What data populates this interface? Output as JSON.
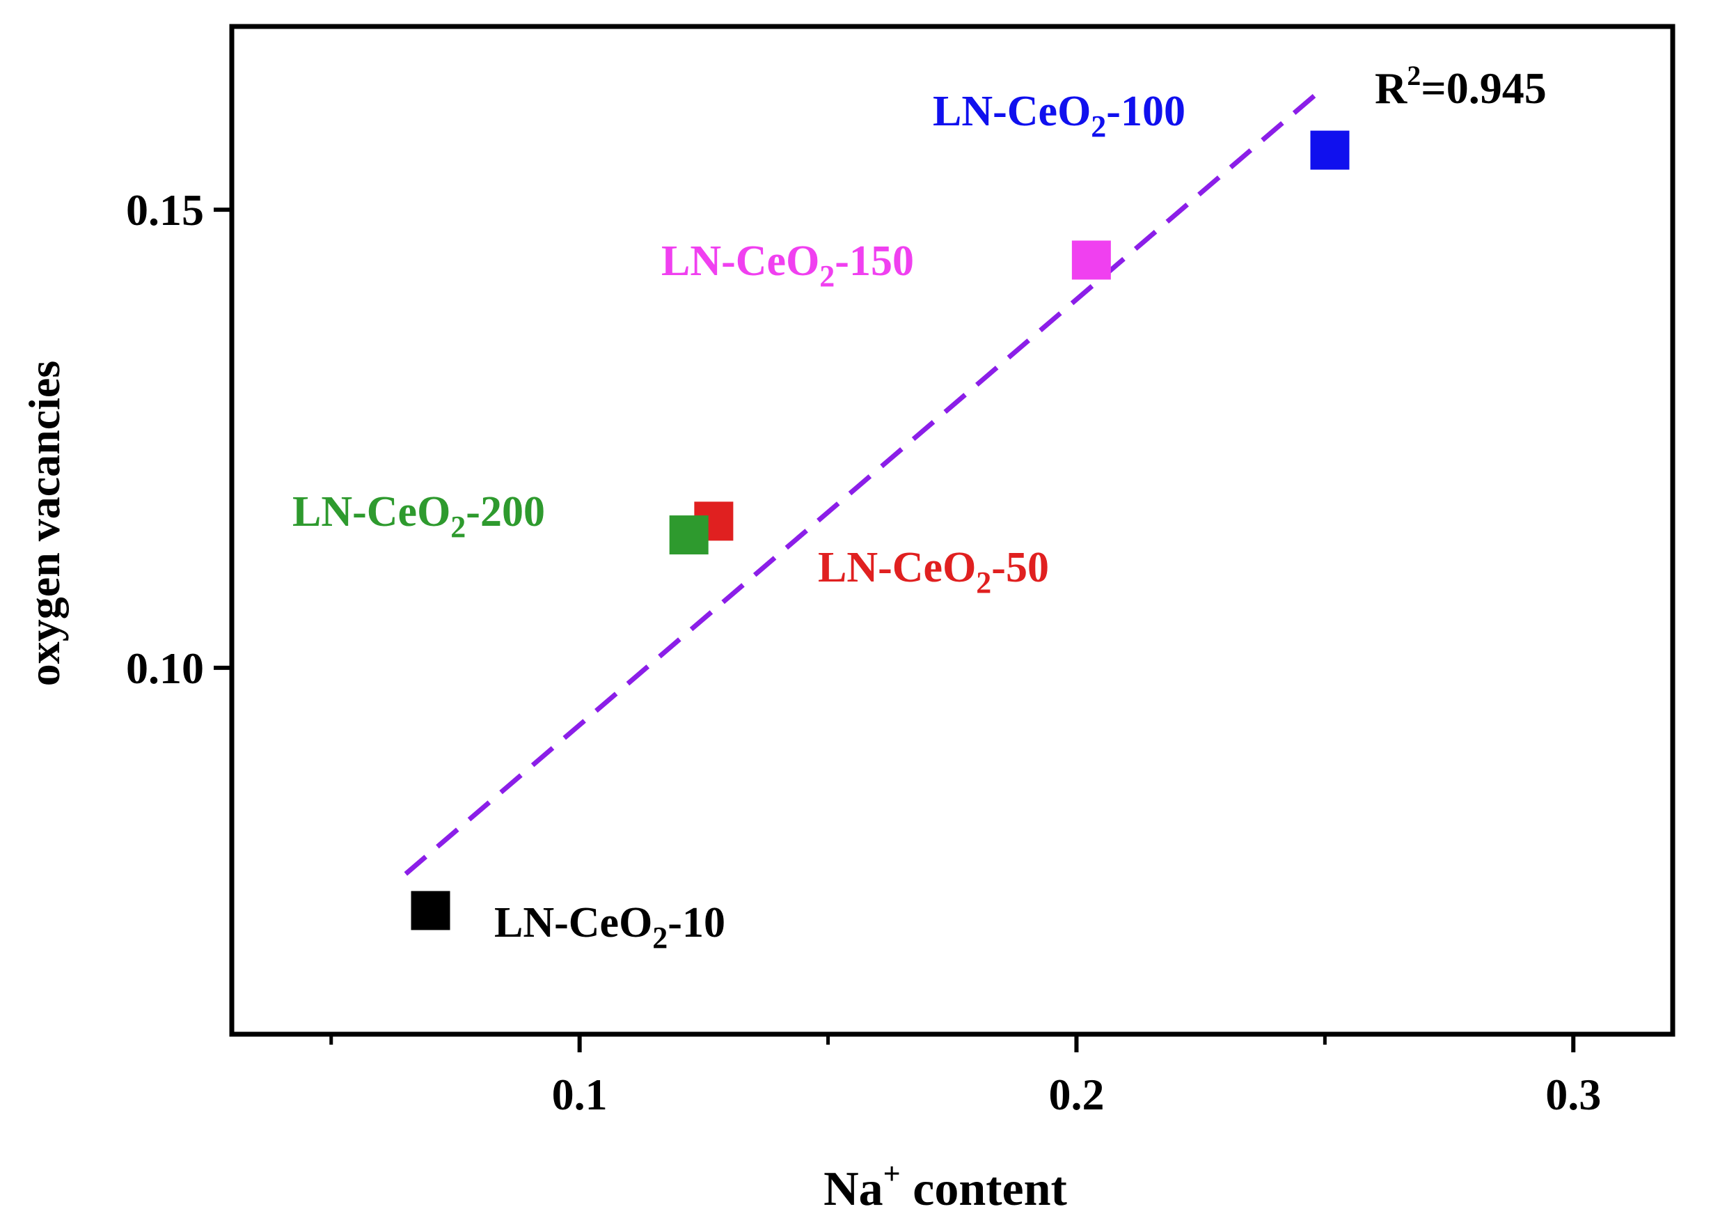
{
  "chart_data": {
    "type": "scatter",
    "xlabel": {
      "main": "Na",
      "sup": "+",
      "rest": " content"
    },
    "ylabel": "oxygen vacancies",
    "xlim": [
      0.03,
      0.32
    ],
    "ylim": [
      0.06,
      0.17
    ],
    "x_ticks_major": [
      0.1,
      0.2,
      0.3
    ],
    "x_tick_labels": [
      "0.1",
      "0.2",
      "0.3"
    ],
    "x_ticks_minor": [
      0.05,
      0.15,
      0.25
    ],
    "y_ticks_major": [
      0.1,
      0.15
    ],
    "y_tick_labels": [
      "0.10",
      "0.15"
    ],
    "points": [
      {
        "sample": "LN-CeO2-10",
        "label": {
          "pre": "LN-CeO",
          "sub": "2",
          "post": "-10"
        },
        "x": 0.07,
        "y": 0.0735,
        "color": "#000000"
      },
      {
        "sample": "LN-CeO2-50",
        "label": {
          "pre": "LN-CeO",
          "sub": "2",
          "post": "-50"
        },
        "x": 0.127,
        "y": 0.116,
        "color": "#e02020"
      },
      {
        "sample": "LN-CeO2-200",
        "label": {
          "pre": "LN-CeO",
          "sub": "2",
          "post": "-200"
        },
        "x": 0.122,
        "y": 0.1145,
        "color": "#2e9a2e"
      },
      {
        "sample": "LN-CeO2-150",
        "label": {
          "pre": "LN-CeO",
          "sub": "2",
          "post": "-150"
        },
        "x": 0.203,
        "y": 0.1445,
        "color": "#f040f0"
      },
      {
        "sample": "LN-CeO2-100",
        "label": {
          "pre": "LN-CeO",
          "sub": "2",
          "post": "-100"
        },
        "x": 0.251,
        "y": 0.1565,
        "color": "#1010ee"
      }
    ],
    "fit_line": {
      "x": [
        0.065,
        0.248
      ],
      "y": [
        0.0775,
        0.1625
      ],
      "color": "#8b1ee8",
      "style": "dashed"
    },
    "r_squared": {
      "pre": "R",
      "sup": "2",
      "post": "=0.945"
    }
  }
}
